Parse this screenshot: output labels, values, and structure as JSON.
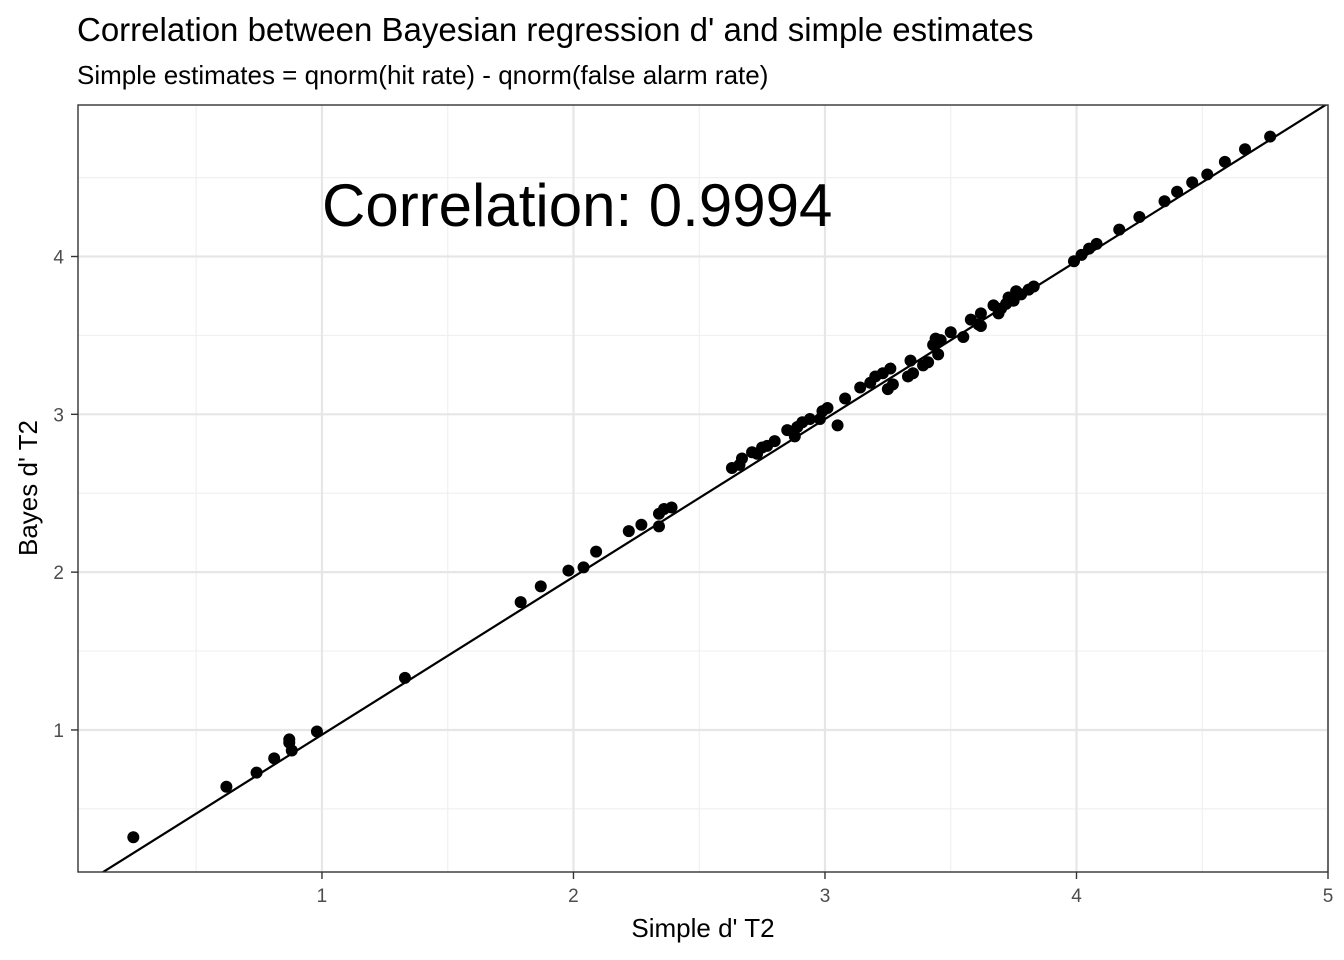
{
  "chart_data": {
    "type": "scatter",
    "title": "Correlation between Bayesian regression d' and simple estimates",
    "subtitle": "Simple estimates = qnorm(hit rate) - qnorm(false alarm rate)",
    "xlabel": "Simple d' T2",
    "ylabel": "Bayes d' T2",
    "annotation": "Correlation:  0.9994",
    "xlim": [
      0.03,
      5.0
    ],
    "ylim": [
      0.1,
      4.96
    ],
    "x_ticks": [
      1,
      2,
      3,
      4,
      5
    ],
    "y_ticks": [
      1,
      2,
      3,
      4
    ],
    "x_tick_labels": [
      "1",
      "2",
      "3",
      "4",
      "5"
    ],
    "y_tick_labels": [
      "1",
      "2",
      "3",
      "4"
    ],
    "grid": true,
    "fit_line": {
      "intercept": -0.03,
      "slope": 1.0
    },
    "points": [
      [
        0.25,
        0.32
      ],
      [
        0.62,
        0.64
      ],
      [
        0.74,
        0.73
      ],
      [
        0.81,
        0.82
      ],
      [
        0.87,
        0.92
      ],
      [
        0.87,
        0.94
      ],
      [
        0.88,
        0.87
      ],
      [
        0.98,
        0.99
      ],
      [
        1.33,
        1.33
      ],
      [
        1.79,
        1.81
      ],
      [
        1.87,
        1.91
      ],
      [
        1.98,
        2.01
      ],
      [
        2.04,
        2.03
      ],
      [
        2.09,
        2.13
      ],
      [
        2.22,
        2.26
      ],
      [
        2.27,
        2.3
      ],
      [
        2.34,
        2.29
      ],
      [
        2.34,
        2.37
      ],
      [
        2.36,
        2.4
      ],
      [
        2.39,
        2.41
      ],
      [
        2.63,
        2.66
      ],
      [
        2.66,
        2.68
      ],
      [
        2.67,
        2.72
      ],
      [
        2.71,
        2.76
      ],
      [
        2.73,
        2.75
      ],
      [
        2.75,
        2.79
      ],
      [
        2.77,
        2.8
      ],
      [
        2.8,
        2.83
      ],
      [
        2.85,
        2.9
      ],
      [
        2.88,
        2.86
      ],
      [
        2.89,
        2.92
      ],
      [
        2.91,
        2.95
      ],
      [
        2.94,
        2.97
      ],
      [
        2.98,
        2.97
      ],
      [
        2.99,
        3.02
      ],
      [
        3.01,
        3.04
      ],
      [
        3.05,
        2.93
      ],
      [
        3.08,
        3.1
      ],
      [
        3.14,
        3.17
      ],
      [
        3.18,
        3.2
      ],
      [
        3.2,
        3.24
      ],
      [
        3.23,
        3.26
      ],
      [
        3.25,
        3.16
      ],
      [
        3.26,
        3.29
      ],
      [
        3.27,
        3.19
      ],
      [
        3.33,
        3.24
      ],
      [
        3.34,
        3.34
      ],
      [
        3.35,
        3.26
      ],
      [
        3.39,
        3.31
      ],
      [
        3.41,
        3.33
      ],
      [
        3.43,
        3.44
      ],
      [
        3.44,
        3.48
      ],
      [
        3.45,
        3.38
      ],
      [
        3.46,
        3.47
      ],
      [
        3.5,
        3.52
      ],
      [
        3.55,
        3.49
      ],
      [
        3.58,
        3.6
      ],
      [
        3.61,
        3.57
      ],
      [
        3.62,
        3.64
      ],
      [
        3.62,
        3.56
      ],
      [
        3.67,
        3.69
      ],
      [
        3.69,
        3.64
      ],
      [
        3.7,
        3.67
      ],
      [
        3.72,
        3.7
      ],
      [
        3.73,
        3.74
      ],
      [
        3.75,
        3.72
      ],
      [
        3.76,
        3.78
      ],
      [
        3.78,
        3.76
      ],
      [
        3.81,
        3.79
      ],
      [
        3.83,
        3.81
      ],
      [
        3.99,
        3.97
      ],
      [
        4.02,
        4.01
      ],
      [
        4.05,
        4.05
      ],
      [
        4.08,
        4.08
      ],
      [
        4.17,
        4.17
      ],
      [
        4.25,
        4.25
      ],
      [
        4.35,
        4.35
      ],
      [
        4.4,
        4.41
      ],
      [
        4.46,
        4.47
      ],
      [
        4.52,
        4.52
      ],
      [
        4.59,
        4.6
      ],
      [
        4.67,
        4.68
      ],
      [
        4.77,
        4.76
      ]
    ]
  }
}
